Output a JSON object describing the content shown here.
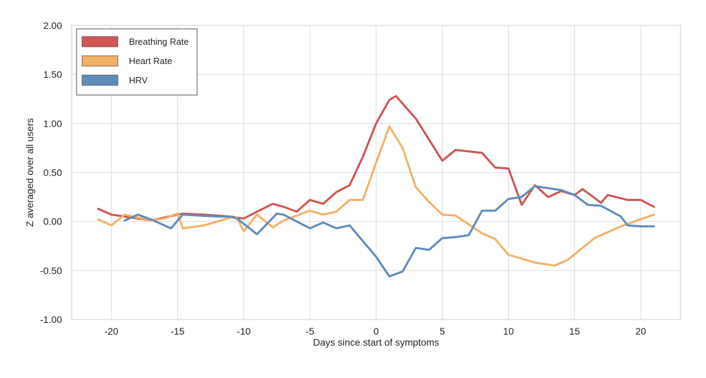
{
  "chart_data": {
    "type": "line",
    "title": "",
    "xlabel": "Days since start of symptoms",
    "ylabel": "Z averaged over all users",
    "xlim": [
      -23,
      23
    ],
    "ylim": [
      -1.0,
      2.0
    ],
    "x_ticks": [
      -20,
      -15,
      -10,
      -5,
      0,
      5,
      10,
      15,
      20
    ],
    "x_tick_labels": [
      "-20",
      "-15",
      "-10",
      "-5",
      "0",
      "5",
      "10",
      "15",
      "20"
    ],
    "y_ticks": [
      -1.0,
      -0.5,
      0.0,
      0.5,
      1.0,
      1.5,
      2.0
    ],
    "y_tick_labels": [
      "-1.00",
      "-0.50",
      "0.00",
      "0.50",
      "1.00",
      "1.50",
      "2.00"
    ],
    "grid": true,
    "legend_position": "top-left",
    "series": [
      {
        "name": "Breathing Rate",
        "color": "#d05553",
        "points": [
          [
            -21,
            0.13
          ],
          [
            -20,
            0.07
          ],
          [
            -19,
            0.05
          ],
          [
            -18,
            0.03
          ],
          [
            -17,
            0.01
          ],
          [
            -16,
            0.04
          ],
          [
            -15,
            0.07
          ],
          [
            -14.6,
            0.08
          ],
          [
            -13,
            0.07
          ],
          [
            -11,
            0.05
          ],
          [
            -10.5,
            0.04
          ],
          [
            -10,
            0.03
          ],
          [
            -9,
            0.1
          ],
          [
            -7.8,
            0.18
          ],
          [
            -7,
            0.15
          ],
          [
            -6,
            0.1
          ],
          [
            -5,
            0.22
          ],
          [
            -4,
            0.18
          ],
          [
            -3,
            0.3
          ],
          [
            -2,
            0.37
          ],
          [
            -1,
            0.66
          ],
          [
            0,
            1.0
          ],
          [
            1,
            1.24
          ],
          [
            1.5,
            1.28
          ],
          [
            3,
            1.05
          ],
          [
            5,
            0.62
          ],
          [
            6,
            0.73
          ],
          [
            8,
            0.7
          ],
          [
            9,
            0.55
          ],
          [
            10,
            0.54
          ],
          [
            11,
            0.17
          ],
          [
            12,
            0.37
          ],
          [
            13,
            0.25
          ],
          [
            14,
            0.31
          ],
          [
            15,
            0.27
          ],
          [
            15.6,
            0.33
          ],
          [
            17,
            0.19
          ],
          [
            17.5,
            0.27
          ],
          [
            19,
            0.22
          ],
          [
            20,
            0.22
          ],
          [
            21,
            0.15
          ]
        ]
      },
      {
        "name": "Heart Rate",
        "color": "#f2b266",
        "points": [
          [
            -21,
            0.02
          ],
          [
            -20,
            -0.04
          ],
          [
            -19,
            0.07
          ],
          [
            -18,
            0.04
          ],
          [
            -17,
            0.01
          ],
          [
            -16,
            0.03
          ],
          [
            -15,
            0.08
          ],
          [
            -14.6,
            -0.07
          ],
          [
            -13,
            -0.04
          ],
          [
            -11,
            0.04
          ],
          [
            -10.5,
            0.04
          ],
          [
            -10,
            -0.1
          ],
          [
            -9,
            0.07
          ],
          [
            -7.8,
            -0.06
          ],
          [
            -7,
            0.01
          ],
          [
            -5,
            0.11
          ],
          [
            -4,
            0.07
          ],
          [
            -3,
            0.1
          ],
          [
            -2,
            0.22
          ],
          [
            -1,
            0.22
          ],
          [
            0,
            0.6
          ],
          [
            1,
            0.97
          ],
          [
            2,
            0.75
          ],
          [
            3,
            0.35
          ],
          [
            4,
            0.2
          ],
          [
            5,
            0.07
          ],
          [
            6,
            0.06
          ],
          [
            7,
            -0.03
          ],
          [
            8,
            -0.12
          ],
          [
            9,
            -0.18
          ],
          [
            10,
            -0.34
          ],
          [
            12,
            -0.42
          ],
          [
            13.5,
            -0.45
          ],
          [
            14.5,
            -0.39
          ],
          [
            15.5,
            -0.28
          ],
          [
            16.5,
            -0.17
          ],
          [
            17.5,
            -0.11
          ],
          [
            18.5,
            -0.05
          ],
          [
            19.5,
            0.0
          ],
          [
            21,
            0.07
          ]
        ]
      },
      {
        "name": "HRV",
        "color": "#5f8cbb",
        "points": [
          [
            -19,
            0.01
          ],
          [
            -18,
            0.07
          ],
          [
            -17,
            0.02
          ],
          [
            -15.5,
            -0.07
          ],
          [
            -14.6,
            0.07
          ],
          [
            -12,
            0.05
          ],
          [
            -11,
            0.05
          ],
          [
            -10.5,
            0.03
          ],
          [
            -9,
            -0.13
          ],
          [
            -7.5,
            0.08
          ],
          [
            -7,
            0.07
          ],
          [
            -5,
            -0.07
          ],
          [
            -4,
            -0.01
          ],
          [
            -3,
            -0.07
          ],
          [
            -2,
            -0.04
          ],
          [
            0,
            -0.36
          ],
          [
            1,
            -0.56
          ],
          [
            2,
            -0.51
          ],
          [
            3,
            -0.27
          ],
          [
            4,
            -0.29
          ],
          [
            5,
            -0.17
          ],
          [
            6,
            -0.16
          ],
          [
            7,
            -0.14
          ],
          [
            8,
            0.11
          ],
          [
            9,
            0.11
          ],
          [
            10,
            0.23
          ],
          [
            11,
            0.25
          ],
          [
            12,
            0.36
          ],
          [
            14,
            0.32
          ],
          [
            15,
            0.27
          ],
          [
            16,
            0.17
          ],
          [
            17,
            0.16
          ],
          [
            18.5,
            0.05
          ],
          [
            19,
            -0.04
          ],
          [
            20,
            -0.05
          ],
          [
            21,
            -0.05
          ]
        ]
      }
    ]
  }
}
